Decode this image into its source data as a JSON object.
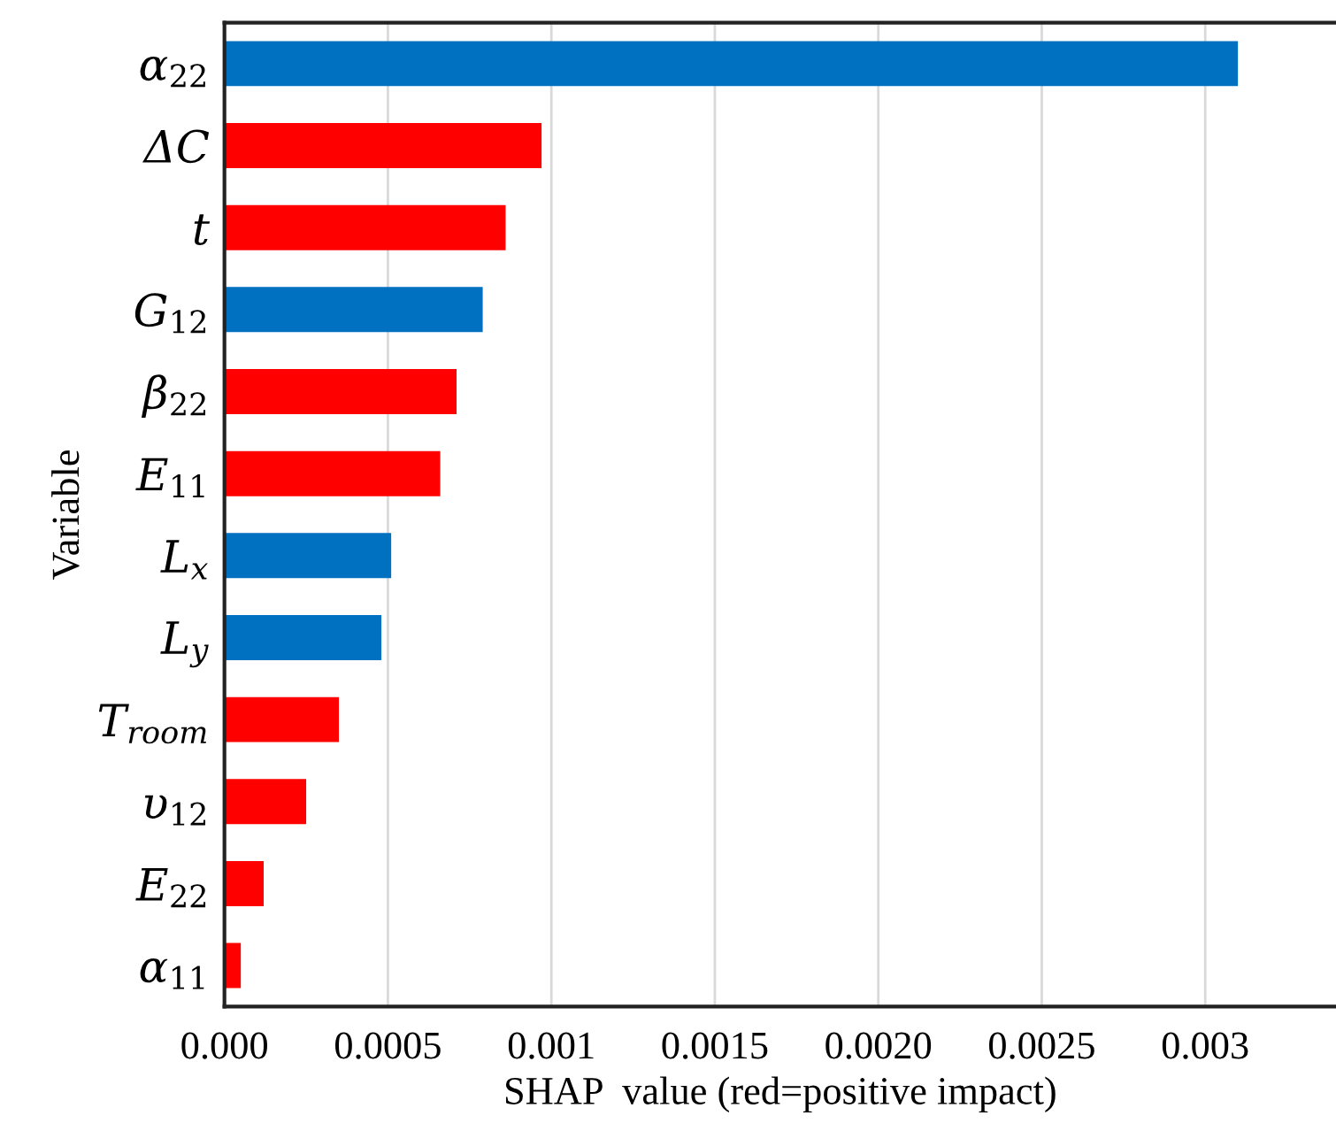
{
  "chart_data": {
    "type": "bar",
    "orientation": "horizontal",
    "xlabel": "SHAP  value (red=positive impact)",
    "ylabel": "Variable",
    "categories": [
      "α$_{22}$",
      "ΔC",
      "t",
      "G$_{12}$",
      "β$_{22}$",
      "E$_{11}$",
      "L$_{x}$",
      "L$_{y}$",
      "T$_{room}$",
      "υ$_{12}$",
      "E$_{22}$",
      "α$_{11}$"
    ],
    "values": [
      0.0031,
      0.00097,
      0.00086,
      0.00079,
      0.00071,
      0.00066,
      0.00051,
      0.00048,
      0.00035,
      0.00025,
      0.00012,
      5e-05
    ],
    "colors": [
      "#0070c0",
      "#ff0000",
      "#ff0000",
      "#0070c0",
      "#ff0000",
      "#ff0000",
      "#0070c0",
      "#0070c0",
      "#ff0000",
      "#ff0000",
      "#ff0000",
      "#ff0000"
    ],
    "xlim": [
      0,
      0.0034
    ],
    "xticks": [
      {
        "value": 0,
        "label": "0.000"
      },
      0.0005,
      0.001,
      0.0015,
      {
        "value": 0.002,
        "label": "0.0020"
      },
      0.0025,
      0.003
    ],
    "grid": "x"
  }
}
